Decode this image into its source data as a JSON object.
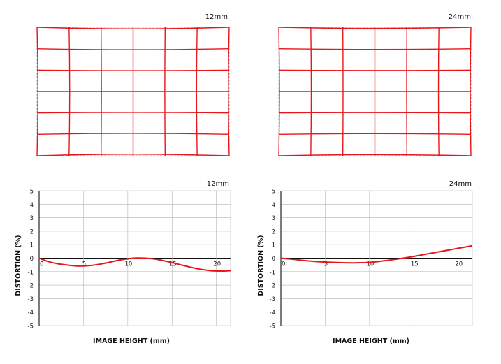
{
  "chart_data": [
    {
      "type": "grid",
      "panel": "grid-12",
      "focal_label": "12mm",
      "columns": 6,
      "rows": 6
    },
    {
      "type": "grid",
      "panel": "grid-24",
      "focal_label": "24mm",
      "columns": 6,
      "rows": 6
    },
    {
      "type": "line",
      "panel": "plot-12",
      "focal_label": "12mm",
      "xlabel": "IMAGE HEIGHT (mm)",
      "ylabel": "DISTORTION (%)",
      "xlim": [
        0,
        21.6
      ],
      "ylim": [
        -5,
        5
      ],
      "x_ticks": [
        0,
        5,
        10,
        15,
        20
      ],
      "x_tick_labels": [
        "0",
        "5",
        "10",
        "15",
        "20"
      ],
      "y_ticks": [
        5,
        4,
        3,
        2,
        1,
        0,
        -1,
        -2,
        -3,
        -4,
        -5
      ],
      "y_tick_labels": [
        "5",
        "4",
        "3",
        "2",
        "1",
        "0",
        "-1",
        "-2",
        "-3",
        "-4",
        "-5"
      ],
      "grid": true,
      "color": "#e8151b",
      "series": [
        {
          "x": [
            0,
            1,
            2,
            3,
            4,
            5,
            6,
            7,
            8,
            9,
            10,
            11,
            12,
            13,
            14,
            15,
            16,
            17,
            18,
            19,
            20,
            21,
            21.6
          ],
          "y": [
            0,
            -0.25,
            -0.4,
            -0.5,
            -0.57,
            -0.58,
            -0.53,
            -0.43,
            -0.3,
            -0.15,
            -0.05,
            0.01,
            0.0,
            -0.06,
            -0.18,
            -0.33,
            -0.5,
            -0.66,
            -0.8,
            -0.9,
            -0.95,
            -0.95,
            -0.92
          ]
        }
      ]
    },
    {
      "type": "line",
      "panel": "plot-24",
      "focal_label": "24mm",
      "xlabel": "IMAGE HEIGHT (mm)",
      "ylabel": "DISTORTION (%)",
      "xlim": [
        0,
        21.6
      ],
      "ylim": [
        -5,
        5
      ],
      "x_ticks": [
        0,
        5,
        10,
        15,
        20
      ],
      "x_tick_labels": [
        "0",
        "5",
        "10",
        "15",
        "20"
      ],
      "y_ticks": [
        5,
        4,
        3,
        2,
        1,
        0,
        -1,
        -2,
        -3,
        -4,
        -5
      ],
      "y_tick_labels": [
        "5",
        "4",
        "3",
        "2",
        "1",
        "0",
        "-1",
        "-2",
        "-3",
        "-4",
        "-5"
      ],
      "grid": true,
      "color": "#e8151b",
      "series": [
        {
          "x": [
            0,
            1,
            2,
            3,
            4,
            5,
            6,
            7,
            8,
            9,
            10,
            11,
            12,
            13,
            14,
            15,
            16,
            17,
            18,
            19,
            20,
            21,
            21.6
          ],
          "y": [
            0,
            -0.06,
            -0.13,
            -0.2,
            -0.25,
            -0.29,
            -0.32,
            -0.34,
            -0.35,
            -0.34,
            -0.31,
            -0.25,
            -0.17,
            -0.08,
            0.02,
            0.13,
            0.25,
            0.37,
            0.49,
            0.61,
            0.73,
            0.85,
            0.92
          ]
        }
      ]
    }
  ]
}
